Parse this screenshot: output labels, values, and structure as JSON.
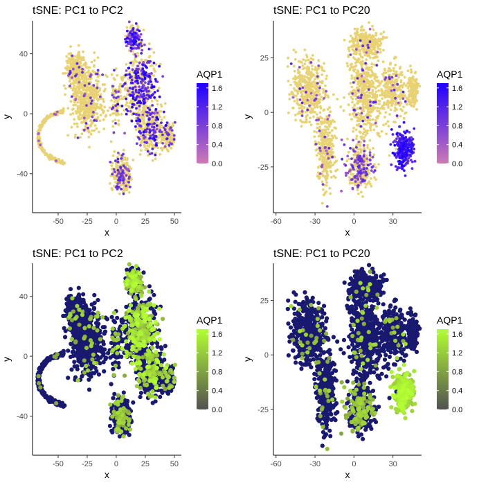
{
  "figure": {
    "layout": "2x2 grid"
  },
  "chart_data": [
    {
      "id": "tl",
      "type": "scatter",
      "title": "tSNE:  PC1 to PC2",
      "xlabel": "x",
      "ylabel": "y",
      "xlim": [
        -72,
        56
      ],
      "ylim": [
        -66,
        62
      ],
      "xticks": [
        -50,
        -25,
        0,
        25,
        50
      ],
      "xtick_labels": [
        "-50",
        "-25",
        "0",
        "25",
        "50"
      ],
      "yticks": [
        -40,
        0,
        40
      ],
      "ytick_labels": [
        "-40",
        "0",
        "40"
      ],
      "grid": false,
      "legend": {
        "title": "AQP1",
        "placement": "right",
        "range": [
          0,
          1.7
        ],
        "ticks": [
          0.0,
          0.4,
          0.8,
          1.2,
          1.6
        ],
        "tick_labels": [
          "0.0",
          "0.4",
          "0.8",
          "1.2",
          "1.6"
        ],
        "low_color": "#cd7ab4",
        "high_color": "#1e00ff"
      },
      "colors": {
        "zero": "#e8d274",
        "low": "#cd7ab4",
        "high": "#1e00ff"
      },
      "point_size": "small",
      "embedding": "pc2"
    },
    {
      "id": "tr",
      "type": "scatter",
      "title": "tSNE:  PC1 to PC20",
      "xlabel": "x",
      "ylabel": "y",
      "xlim": [
        -62,
        52
      ],
      "ylim": [
        -46,
        42
      ],
      "xticks": [
        -60,
        -30,
        0,
        30
      ],
      "xtick_labels": [
        "-60",
        "-30",
        "0",
        "30"
      ],
      "yticks": [
        -25,
        0,
        25
      ],
      "ytick_labels": [
        "-25",
        "0",
        "25"
      ],
      "grid": false,
      "legend": {
        "title": "AQP1",
        "placement": "right",
        "range": [
          0,
          1.7
        ],
        "ticks": [
          0.0,
          0.4,
          0.8,
          1.2,
          1.6
        ],
        "tick_labels": [
          "0.0",
          "0.4",
          "0.8",
          "1.2",
          "1.6"
        ],
        "low_color": "#cd7ab4",
        "high_color": "#1e00ff"
      },
      "colors": {
        "zero": "#e8d274",
        "low": "#cd7ab4",
        "high": "#1e00ff"
      },
      "point_size": "small",
      "embedding": "pc20"
    },
    {
      "id": "bl",
      "type": "scatter",
      "title": "tSNE:  PC1 to PC2",
      "xlabel": "x",
      "ylabel": "y",
      "xlim": [
        -72,
        56
      ],
      "ylim": [
        -66,
        62
      ],
      "xticks": [
        -50,
        -25,
        0,
        25,
        50
      ],
      "xtick_labels": [
        "-50",
        "-25",
        "0",
        "25",
        "50"
      ],
      "yticks": [
        -40,
        0,
        40
      ],
      "ytick_labels": [
        "-40",
        "0",
        "40"
      ],
      "grid": false,
      "legend": {
        "title": "AQP1",
        "placement": "right",
        "range": [
          0,
          1.7
        ],
        "ticks": [
          0.0,
          0.4,
          0.8,
          1.2,
          1.6
        ],
        "tick_labels": [
          "0.0",
          "0.4",
          "0.8",
          "1.2",
          "1.6"
        ],
        "low_color": "#525150",
        "high_color": "#b3ff33"
      },
      "colors": {
        "zero": "#191970",
        "low": "#7a8a45",
        "high": "#b3ff33"
      },
      "point_size": "large",
      "embedding": "pc2"
    },
    {
      "id": "br",
      "type": "scatter",
      "title": "tSNE:  PC1 to PC20",
      "xlabel": "x",
      "ylabel": "y",
      "xlim": [
        -62,
        52
      ],
      "ylim": [
        -46,
        42
      ],
      "xticks": [
        -60,
        -30,
        0,
        30
      ],
      "xtick_labels": [
        "-60",
        "-30",
        "0",
        "30"
      ],
      "yticks": [
        -25,
        0,
        25
      ],
      "ytick_labels": [
        "-25",
        "0",
        "25"
      ],
      "grid": false,
      "legend": {
        "title": "AQP1",
        "placement": "right",
        "range": [
          0,
          1.7
        ],
        "ticks": [
          0.0,
          0.4,
          0.8,
          1.2,
          1.6
        ],
        "tick_labels": [
          "0.0",
          "0.4",
          "0.8",
          "1.2",
          "1.6"
        ],
        "low_color": "#525150",
        "high_color": "#b3ff33"
      },
      "colors": {
        "zero": "#191970",
        "low": "#7a8a45",
        "high": "#b3ff33"
      },
      "point_size": "large",
      "embedding": "pc20"
    }
  ]
}
